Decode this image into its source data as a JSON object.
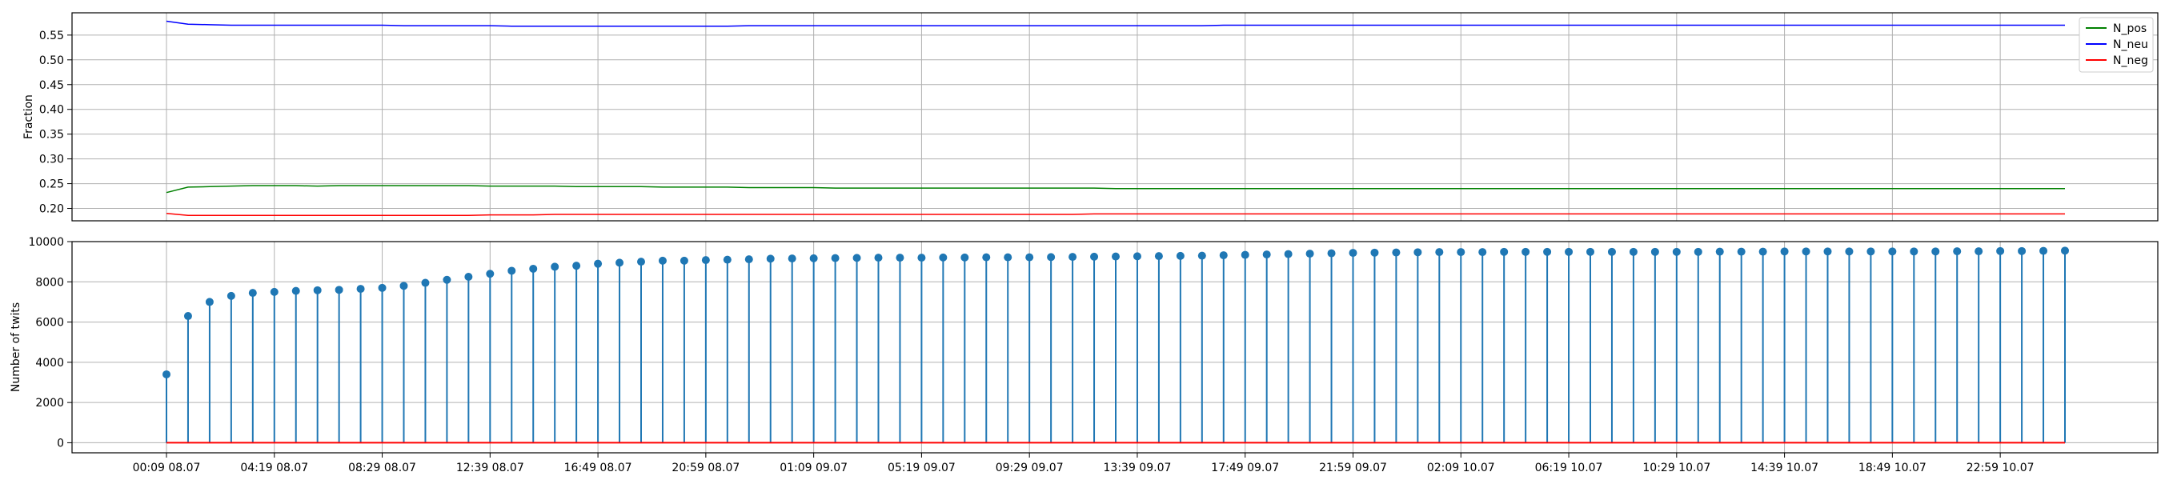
{
  "chart_data": [
    {
      "type": "line",
      "ylabel": "Fraction",
      "ylim": [
        0.175,
        0.595
      ],
      "yticks": [
        0.2,
        0.25,
        0.3,
        0.35,
        0.4,
        0.45,
        0.5,
        0.55
      ],
      "ytick_labels": [
        "0.20",
        "0.25",
        "0.30",
        "0.35",
        "0.40",
        "0.45",
        "0.50",
        "0.55"
      ],
      "grid": true,
      "legend_position": "top-right",
      "series": [
        {
          "name": "N_pos",
          "color": "#008000",
          "values": [
            0.232,
            0.243,
            0.244,
            0.245,
            0.246,
            0.246,
            0.246,
            0.245,
            0.246,
            0.246,
            0.246,
            0.246,
            0.246,
            0.246,
            0.246,
            0.245,
            0.245,
            0.245,
            0.245,
            0.244,
            0.244,
            0.244,
            0.244,
            0.243,
            0.243,
            0.243,
            0.243,
            0.242,
            0.242,
            0.242,
            0.242,
            0.241,
            0.241,
            0.241,
            0.241,
            0.241,
            0.241,
            0.241,
            0.241,
            0.241,
            0.241,
            0.241,
            0.241,
            0.241,
            0.24,
            0.24,
            0.24,
            0.24,
            0.24,
            0.24,
            0.24,
            0.24,
            0.24,
            0.24,
            0.24,
            0.24,
            0.24,
            0.24,
            0.24,
            0.24,
            0.24,
            0.24,
            0.24,
            0.24,
            0.24,
            0.24,
            0.24,
            0.24,
            0.24,
            0.24,
            0.24,
            0.24,
            0.24,
            0.24,
            0.24,
            0.24,
            0.24,
            0.24,
            0.24,
            0.24,
            0.24,
            0.24,
            0.24,
            0.24,
            0.24,
            0.24,
            0.24,
            0.24,
            0.24
          ]
        },
        {
          "name": "N_neu",
          "color": "#0000ff",
          "values": [
            0.578,
            0.572,
            0.571,
            0.57,
            0.57,
            0.57,
            0.57,
            0.57,
            0.57,
            0.57,
            0.57,
            0.569,
            0.569,
            0.569,
            0.569,
            0.569,
            0.568,
            0.568,
            0.568,
            0.568,
            0.568,
            0.568,
            0.568,
            0.568,
            0.568,
            0.568,
            0.568,
            0.569,
            0.569,
            0.569,
            0.569,
            0.569,
            0.569,
            0.569,
            0.569,
            0.569,
            0.569,
            0.569,
            0.569,
            0.569,
            0.569,
            0.569,
            0.569,
            0.569,
            0.569,
            0.569,
            0.569,
            0.569,
            0.569,
            0.57,
            0.57,
            0.57,
            0.57,
            0.57,
            0.57,
            0.57,
            0.57,
            0.57,
            0.57,
            0.57,
            0.57,
            0.57,
            0.57,
            0.57,
            0.57,
            0.57,
            0.57,
            0.57,
            0.57,
            0.57,
            0.57,
            0.57,
            0.57,
            0.57,
            0.57,
            0.57,
            0.57,
            0.57,
            0.57,
            0.57,
            0.57,
            0.57,
            0.57,
            0.57,
            0.57,
            0.57,
            0.57,
            0.57,
            0.57
          ]
        },
        {
          "name": "N_neg",
          "color": "#ff0000",
          "values": [
            0.19,
            0.186,
            0.186,
            0.186,
            0.186,
            0.186,
            0.186,
            0.186,
            0.186,
            0.186,
            0.186,
            0.186,
            0.186,
            0.186,
            0.186,
            0.187,
            0.187,
            0.187,
            0.188,
            0.188,
            0.188,
            0.188,
            0.188,
            0.188,
            0.188,
            0.188,
            0.188,
            0.188,
            0.188,
            0.188,
            0.188,
            0.188,
            0.188,
            0.188,
            0.188,
            0.188,
            0.188,
            0.188,
            0.188,
            0.188,
            0.188,
            0.188,
            0.188,
            0.189,
            0.189,
            0.189,
            0.189,
            0.189,
            0.189,
            0.189,
            0.189,
            0.189,
            0.189,
            0.189,
            0.189,
            0.189,
            0.189,
            0.189,
            0.189,
            0.189,
            0.189,
            0.189,
            0.189,
            0.189,
            0.189,
            0.189,
            0.189,
            0.189,
            0.189,
            0.189,
            0.189,
            0.189,
            0.189,
            0.189,
            0.189,
            0.189,
            0.189,
            0.189,
            0.189,
            0.189,
            0.189,
            0.189,
            0.189,
            0.189,
            0.189,
            0.189,
            0.189,
            0.189,
            0.189
          ]
        }
      ]
    },
    {
      "type": "stem",
      "ylabel": "Number of twits",
      "ylim": [
        -500,
        10000
      ],
      "yticks": [
        0,
        2000,
        4000,
        6000,
        8000,
        10000
      ],
      "ytick_labels": [
        "0",
        "2000",
        "4000",
        "6000",
        "8000",
        "10000"
      ],
      "grid": true,
      "stem_color": "#1f77b4",
      "baseline_color": "#ff0000",
      "values": [
        3400,
        6300,
        7000,
        7300,
        7450,
        7500,
        7550,
        7580,
        7600,
        7650,
        7700,
        7800,
        7950,
        8100,
        8250,
        8400,
        8550,
        8650,
        8750,
        8800,
        8900,
        8950,
        9000,
        9050,
        9050,
        9080,
        9100,
        9120,
        9150,
        9160,
        9170,
        9180,
        9190,
        9200,
        9200,
        9200,
        9210,
        9210,
        9220,
        9220,
        9220,
        9230,
        9240,
        9250,
        9260,
        9270,
        9280,
        9290,
        9300,
        9320,
        9340,
        9360,
        9380,
        9400,
        9420,
        9440,
        9450,
        9460,
        9470,
        9480,
        9480,
        9480,
        9490,
        9490,
        9490,
        9490,
        9490,
        9490,
        9490,
        9490,
        9490,
        9490,
        9500,
        9500,
        9500,
        9510,
        9510,
        9510,
        9510,
        9510,
        9510,
        9510,
        9510,
        9520,
        9520,
        9530,
        9530,
        9540,
        9550
      ]
    }
  ],
  "x_axis": {
    "tick_labels": [
      "00:09 08.07",
      "04:19 08.07",
      "08:29 08.07",
      "12:39 08.07",
      "16:49 08.07",
      "20:59 08.07",
      "01:09 09.07",
      "05:19 09.07",
      "09:29 09.07",
      "13:39 09.07",
      "17:49 09.07",
      "21:59 09.07",
      "02:09 10.07",
      "06:19 10.07",
      "10:29 10.07",
      "14:39 10.07",
      "18:49 10.07",
      "22:59 10.07"
    ],
    "tick_every_n_points": 5
  }
}
